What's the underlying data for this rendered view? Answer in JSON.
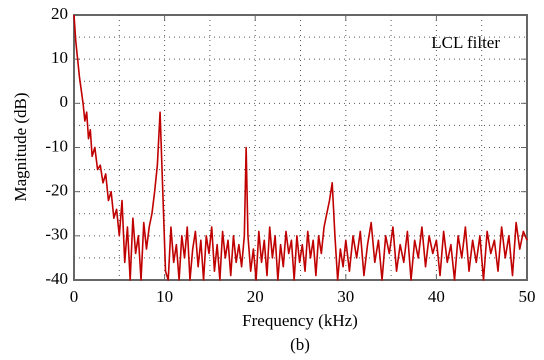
{
  "chart_data": {
    "type": "line",
    "annotation": "LCL filter",
    "xlabel": "Frequency (kHz)",
    "ylabel": "Magnitude (dB)",
    "caption": "(b)",
    "xlim": [
      0,
      50
    ],
    "ylim": [
      -40,
      20
    ],
    "xticks": [
      0,
      10,
      20,
      30,
      40,
      50
    ],
    "yticks": [
      -40,
      -30,
      -20,
      -10,
      0,
      10,
      20
    ],
    "xgrid": [
      5,
      10,
      15,
      20,
      25,
      30,
      35,
      40,
      45
    ],
    "ygrid": [
      -35,
      -30,
      -25,
      -20,
      -15,
      -10,
      -5,
      0,
      5,
      10,
      15
    ],
    "grid": true,
    "series": [
      {
        "color": "#c00000",
        "x": [
          0,
          0.2,
          0.4,
          0.6,
          0.8,
          1.0,
          1.2,
          1.4,
          1.6,
          1.8,
          2.0,
          2.3,
          2.6,
          2.9,
          3.2,
          3.5,
          3.8,
          4.1,
          4.4,
          4.7,
          5.0,
          5.3,
          5.6,
          5.9,
          6.2,
          6.5,
          6.8,
          7.1,
          7.4,
          7.7,
          8.0,
          8.3,
          8.6,
          8.9,
          9.2,
          9.5,
          9.8,
          10.1,
          10.4,
          10.7,
          11.0,
          11.3,
          11.6,
          11.9,
          12.2,
          12.5,
          12.8,
          13.1,
          13.4,
          13.7,
          14.0,
          14.3,
          14.6,
          14.9,
          15.2,
          15.5,
          15.8,
          16.1,
          16.4,
          16.7,
          17.0,
          17.3,
          17.6,
          17.9,
          18.2,
          18.5,
          18.8,
          19.0,
          19.2,
          19.5,
          19.8,
          20.1,
          20.4,
          20.7,
          21.0,
          21.3,
          21.6,
          21.9,
          22.2,
          22.5,
          22.8,
          23.1,
          23.4,
          23.7,
          24.0,
          24.3,
          24.6,
          24.9,
          25.2,
          25.5,
          25.8,
          26.1,
          26.4,
          26.7,
          27.0,
          27.3,
          27.6,
          27.9,
          28.2,
          28.5,
          28.8,
          29.1,
          29.4,
          29.7,
          30.0,
          30.4,
          30.8,
          31.2,
          31.6,
          32.0,
          32.4,
          32.8,
          33.2,
          33.6,
          34.0,
          34.4,
          34.8,
          35.2,
          35.6,
          36.0,
          36.4,
          36.8,
          37.2,
          37.6,
          38.0,
          38.4,
          38.8,
          39.2,
          39.6,
          40.0,
          40.4,
          40.8,
          41.2,
          41.6,
          42.0,
          42.4,
          42.8,
          43.2,
          43.6,
          44.0,
          44.4,
          44.8,
          45.2,
          45.6,
          46.0,
          46.4,
          46.8,
          47.2,
          47.6,
          48.0,
          48.4,
          48.8,
          49.2,
          49.6,
          50.0
        ],
        "values": [
          20,
          14,
          10,
          6,
          3,
          0,
          -4,
          -2,
          -8,
          -6,
          -12,
          -10,
          -15,
          -14,
          -18,
          -16,
          -22,
          -20,
          -26,
          -24,
          -30,
          -22,
          -36,
          -28,
          -40,
          -26,
          -34,
          -30,
          -40,
          -27,
          -33,
          -28,
          -25,
          -20,
          -14,
          -2,
          -20,
          -38,
          -40,
          -28,
          -36,
          -32,
          -40,
          -30,
          -35,
          -28,
          -40,
          -33,
          -29,
          -37,
          -31,
          -40,
          -30,
          -34,
          -28,
          -38,
          -32,
          -40,
          -29,
          -35,
          -31,
          -39,
          -30,
          -36,
          -32,
          -37,
          -30,
          -10,
          -30,
          -38,
          -33,
          -40,
          -29,
          -36,
          -31,
          -39,
          -28,
          -35,
          -30,
          -40,
          -32,
          -37,
          -29,
          -34,
          -31,
          -40,
          -30,
          -36,
          -32,
          -38,
          -29,
          -35,
          -31,
          -39,
          -30,
          -34,
          -28,
          -25,
          -22,
          -18,
          -30,
          -40,
          -33,
          -37,
          -31,
          -38,
          -30,
          -35,
          -29,
          -39,
          -32,
          -27,
          -36,
          -31,
          -40,
          -30,
          -34,
          -28,
          -38,
          -32,
          -36,
          -29,
          -40,
          -31,
          -35,
          -28,
          -37,
          -30,
          -34,
          -31,
          -39,
          -29,
          -36,
          -32,
          -40,
          -30,
          -35,
          -28,
          -38,
          -31,
          -36,
          -30,
          -40,
          -29,
          -34,
          -31,
          -38,
          -28,
          -35,
          -30,
          -39,
          -27,
          -33,
          -29,
          -31
        ]
      }
    ]
  }
}
